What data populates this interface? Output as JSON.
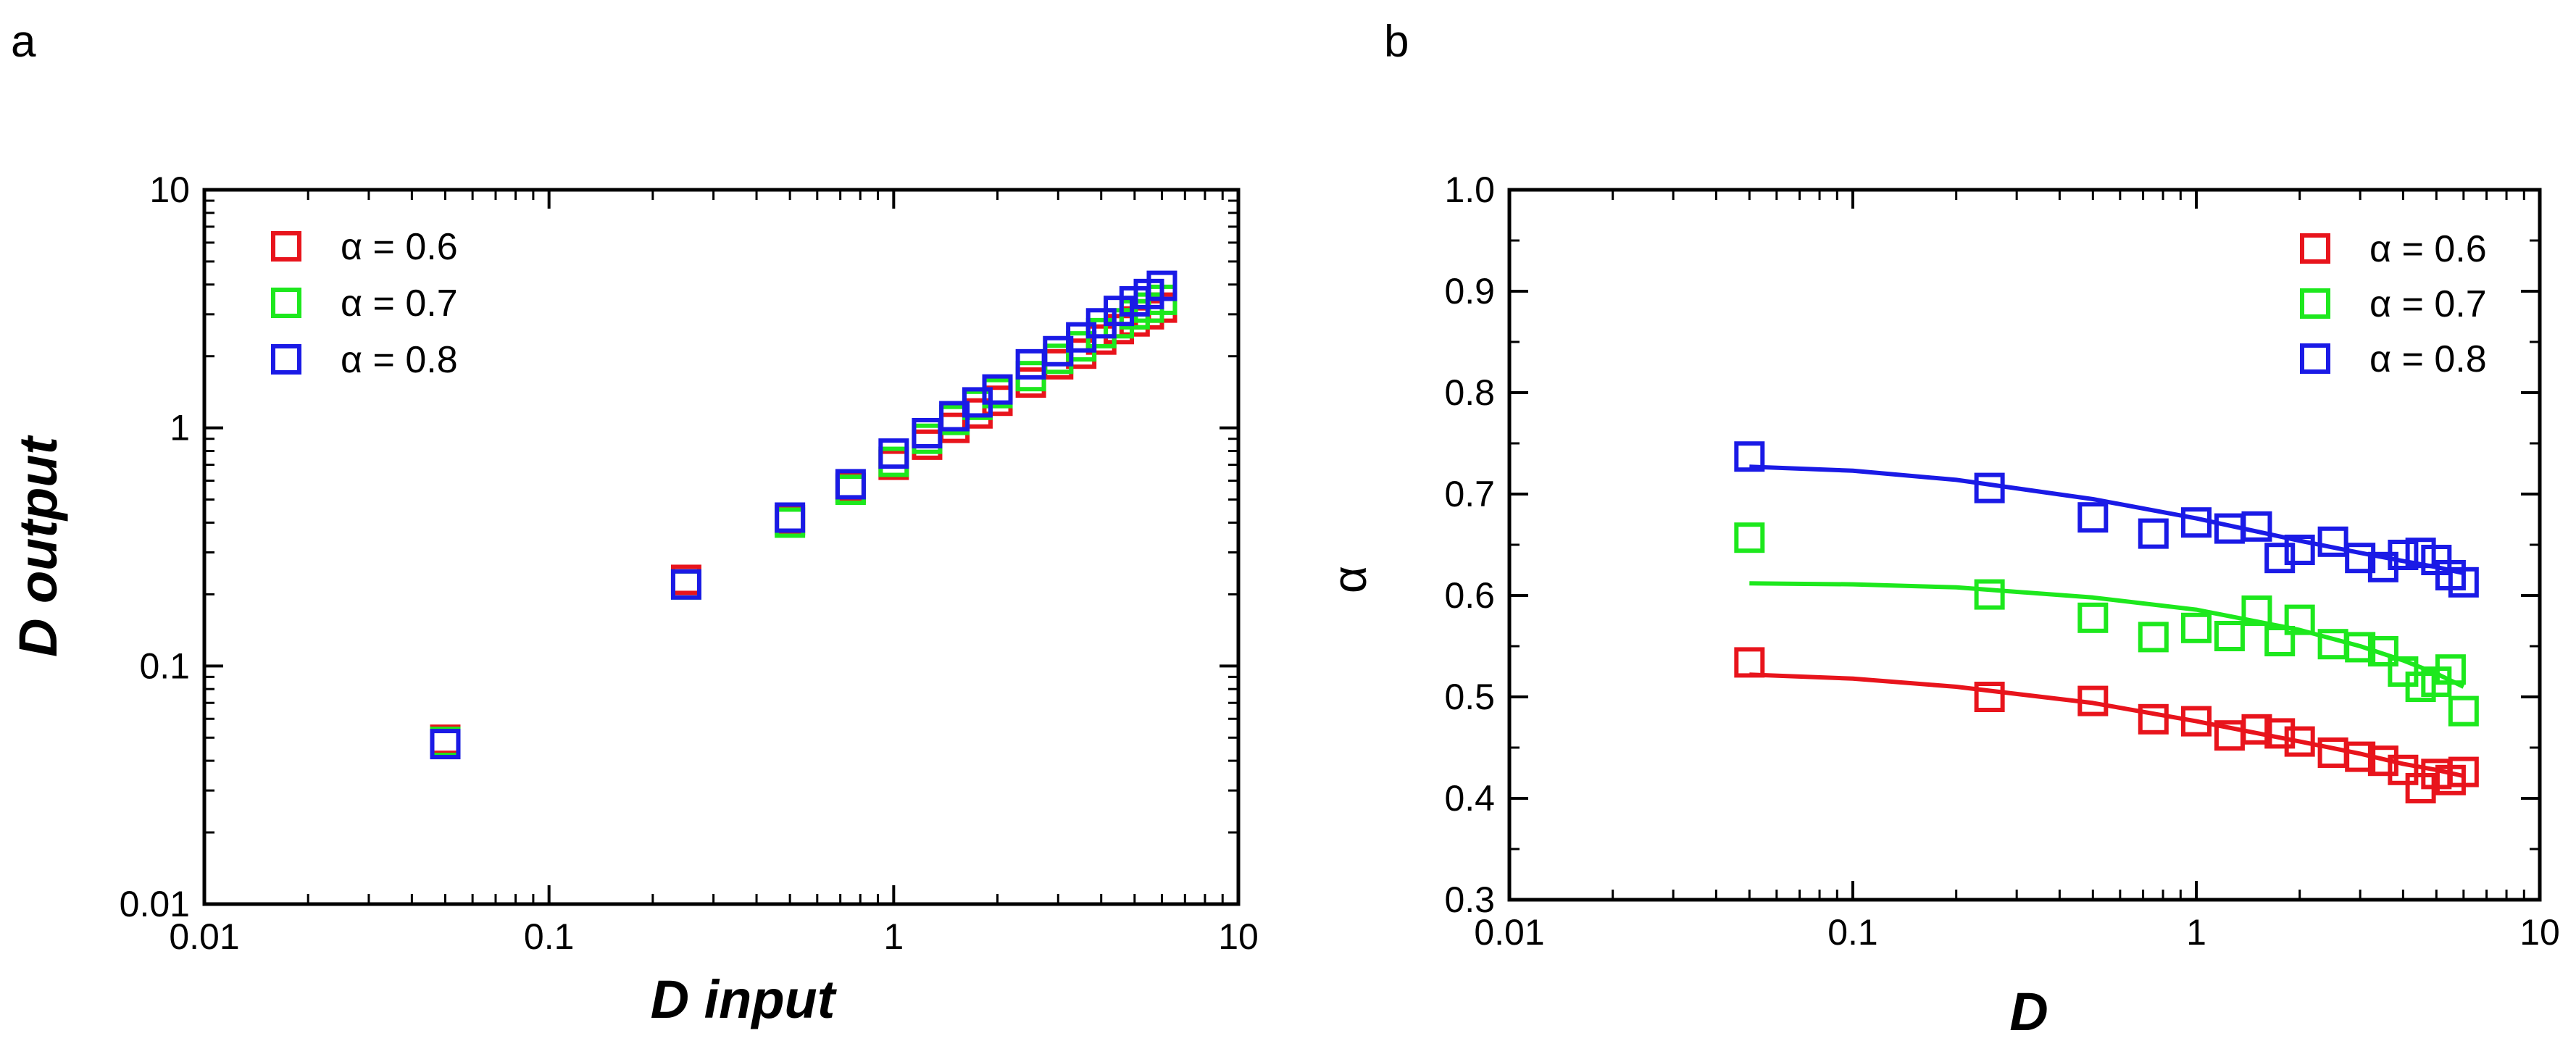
{
  "colors": {
    "red": "#e8141c",
    "green": "#1de81d",
    "blue": "#1a1ae6",
    "axis": "#000000"
  },
  "chart_data": [
    {
      "panel_label": "a",
      "type": "scatter",
      "xscale": "log",
      "yscale": "log",
      "xlim": [
        0.01,
        10
      ],
      "ylim": [
        0.01,
        10
      ],
      "xticks": [
        0.01,
        0.1,
        1,
        10
      ],
      "xtick_labels": [
        "0.01",
        "0.1",
        "1",
        "10"
      ],
      "yticks": [
        0.01,
        0.1,
        1,
        10
      ],
      "ytick_labels": [
        "0.01",
        "0.1",
        "1",
        "10"
      ],
      "xlabel": "D input",
      "ylabel": "D output",
      "legend_position": "top-left",
      "series": [
        {
          "name": "α = 0.6",
          "color": "red",
          "x": [
            0.05,
            0.25,
            0.5,
            0.75,
            1.0,
            1.25,
            1.5,
            1.75,
            2.0,
            2.5,
            3.0,
            3.5,
            4.0,
            4.5,
            5.0,
            5.5,
            6.0
          ],
          "y": [
            0.049,
            0.23,
            0.41,
            0.56,
            0.7,
            0.85,
            1.0,
            1.15,
            1.3,
            1.55,
            1.85,
            2.05,
            2.35,
            2.6,
            2.8,
            3.0,
            3.2
          ]
        },
        {
          "name": "α = 0.7",
          "color": "green",
          "x": [
            0.05,
            0.25,
            0.5,
            0.75,
            1.0,
            1.25,
            1.5,
            1.75,
            2.0,
            2.5,
            3.0,
            3.5,
            4.0,
            4.5,
            5.0,
            5.5,
            6.0
          ],
          "y": [
            0.048,
            0.22,
            0.4,
            0.55,
            0.72,
            0.9,
            1.08,
            1.25,
            1.4,
            1.65,
            1.95,
            2.2,
            2.5,
            2.75,
            3.0,
            3.2,
            3.45
          ]
        },
        {
          "name": "α = 0.8",
          "color": "blue",
          "x": [
            0.05,
            0.25,
            0.5,
            0.75,
            1.0,
            1.25,
            1.5,
            1.75,
            2.0,
            2.5,
            3.0,
            3.5,
            4.0,
            4.5,
            5.0,
            5.5,
            6.0
          ],
          "y": [
            0.047,
            0.22,
            0.42,
            0.58,
            0.78,
            0.95,
            1.12,
            1.28,
            1.45,
            1.85,
            2.1,
            2.4,
            2.75,
            3.1,
            3.4,
            3.65,
            3.95
          ]
        }
      ]
    },
    {
      "panel_label": "b",
      "type": "scatter",
      "xscale": "log",
      "yscale": "linear",
      "xlim": [
        0.01,
        10
      ],
      "ylim": [
        0.3,
        1.0
      ],
      "xticks": [
        0.01,
        0.1,
        1,
        10
      ],
      "xtick_labels": [
        "0.01",
        "0.1",
        "1",
        "10"
      ],
      "yticks": [
        0.3,
        0.4,
        0.5,
        0.6,
        0.7,
        0.8,
        0.9,
        1.0
      ],
      "ytick_labels": [
        "0.3",
        "0.4",
        "0.5",
        "0.6",
        "0.7",
        "0.8",
        "0.9",
        "1.0"
      ],
      "xlabel": "D",
      "ylabel": "α",
      "legend_position": "top-right",
      "series": [
        {
          "name": "α = 0.6",
          "color": "red",
          "x": [
            0.05,
            0.25,
            0.5,
            0.75,
            1.0,
            1.25,
            1.5,
            1.75,
            2.0,
            2.5,
            3.0,
            3.5,
            4.0,
            4.5,
            5.0,
            5.5,
            6.0
          ],
          "y": [
            0.534,
            0.5,
            0.496,
            0.478,
            0.476,
            0.462,
            0.468,
            0.464,
            0.456,
            0.445,
            0.441,
            0.437,
            0.428,
            0.41,
            0.424,
            0.418,
            0.426
          ],
          "fit_x": [
            0.05,
            0.1,
            0.2,
            0.5,
            1.0,
            2.0,
            3.0,
            4.0,
            5.0,
            6.0
          ],
          "fit_y": [
            0.522,
            0.518,
            0.51,
            0.494,
            0.476,
            0.456,
            0.444,
            0.434,
            0.428,
            0.422
          ]
        },
        {
          "name": "α = 0.7",
          "color": "green",
          "x": [
            0.05,
            0.25,
            0.5,
            0.75,
            1.0,
            1.25,
            1.5,
            1.75,
            2.0,
            2.5,
            3.0,
            3.5,
            4.0,
            4.5,
            5.0,
            5.5,
            6.0
          ],
          "y": [
            0.657,
            0.601,
            0.578,
            0.559,
            0.568,
            0.56,
            0.585,
            0.555,
            0.576,
            0.552,
            0.549,
            0.545,
            0.525,
            0.51,
            0.515,
            0.527,
            0.486
          ],
          "fit_x": [
            0.05,
            0.1,
            0.2,
            0.5,
            1.0,
            2.0,
            3.0,
            4.0,
            5.0,
            6.0
          ],
          "fit_y": [
            0.612,
            0.611,
            0.608,
            0.598,
            0.586,
            0.566,
            0.55,
            0.536,
            0.523,
            0.51
          ]
        },
        {
          "name": "α = 0.8",
          "color": "blue",
          "x": [
            0.05,
            0.25,
            0.5,
            0.75,
            1.0,
            1.25,
            1.5,
            1.75,
            2.0,
            2.5,
            3.0,
            3.5,
            4.0,
            4.5,
            5.0,
            5.5,
            6.0
          ],
          "y": [
            0.737,
            0.706,
            0.677,
            0.661,
            0.672,
            0.666,
            0.668,
            0.637,
            0.645,
            0.653,
            0.637,
            0.628,
            0.64,
            0.642,
            0.635,
            0.62,
            0.613
          ],
          "fit_x": [
            0.05,
            0.1,
            0.2,
            0.5,
            1.0,
            2.0,
            3.0,
            4.0,
            5.0,
            6.0
          ],
          "fit_y": [
            0.727,
            0.723,
            0.714,
            0.695,
            0.676,
            0.654,
            0.642,
            0.634,
            0.628,
            0.622
          ]
        }
      ]
    }
  ]
}
